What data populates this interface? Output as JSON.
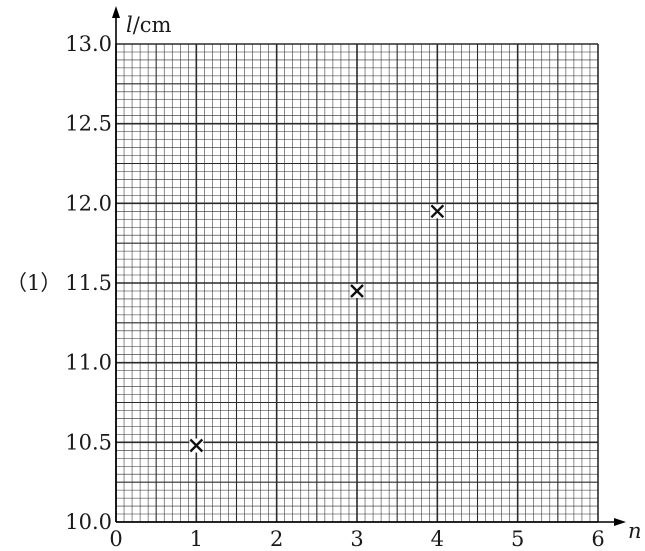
{
  "part_label": "（1）",
  "chart_data": {
    "type": "scatter",
    "xlabel": "n",
    "ylabel": "l/cm",
    "xlim": [
      0,
      6
    ],
    "ylim": [
      10.0,
      13.0
    ],
    "grid": true,
    "x_ticks": [
      "0",
      "1",
      "2",
      "3",
      "4",
      "5",
      "6"
    ],
    "y_ticks": [
      "10.0",
      "10.5",
      "11.0",
      "11.5",
      "12.0",
      "12.5",
      "13.0"
    ],
    "points": [
      {
        "x": 1,
        "y": 10.48
      },
      {
        "x": 3,
        "y": 11.45
      },
      {
        "x": 4,
        "y": 11.95
      }
    ],
    "marker": "x",
    "colors": {
      "grid": "#2b2b2b",
      "axis": "#000000",
      "marker": "#111111"
    }
  }
}
